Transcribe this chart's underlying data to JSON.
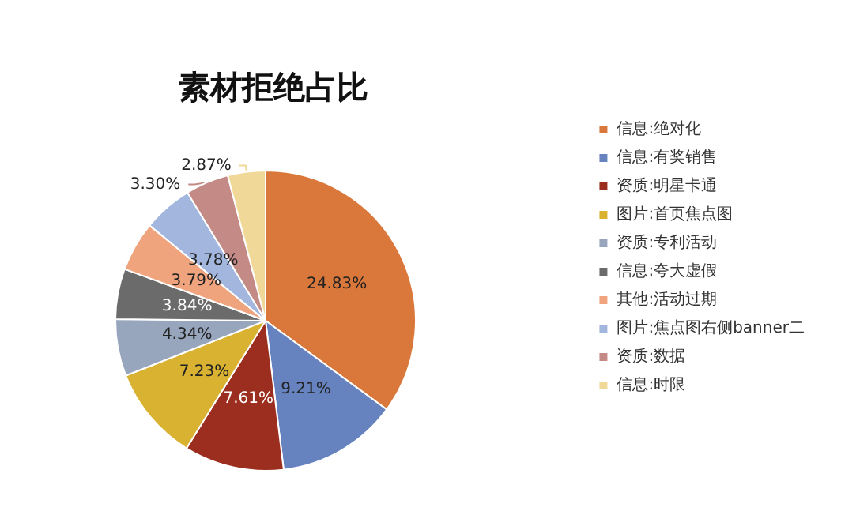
{
  "chart_data": {
    "type": "pie",
    "title": "素材拒绝占比",
    "categories": [
      "信息:绝对化",
      "信息:有奖销售",
      "资质:明星卡通",
      "图片:首页焦点图",
      "资质:专利活动",
      "信息:夸大虚假",
      "其他:活动过期",
      "图片:焦点图右侧banner二",
      "资质:数据",
      "信息:时限"
    ],
    "values": [
      24.83,
      9.21,
      7.61,
      7.23,
      4.34,
      3.84,
      3.79,
      3.78,
      3.3,
      2.87
    ],
    "value_labels": [
      "24.83%",
      "9.21%",
      "7.61%",
      "7.23%",
      "4.34%",
      "3.84%",
      "3.79%",
      "3.78%",
      "3.30%",
      "2.87%"
    ],
    "colors": [
      "#d9783a",
      "#6683bf",
      "#9b2e1e",
      "#d9b232",
      "#98a6bd",
      "#6b6b6b",
      "#f0a47e",
      "#a3b6de",
      "#c48a86",
      "#f0d898"
    ],
    "legend": "right"
  }
}
